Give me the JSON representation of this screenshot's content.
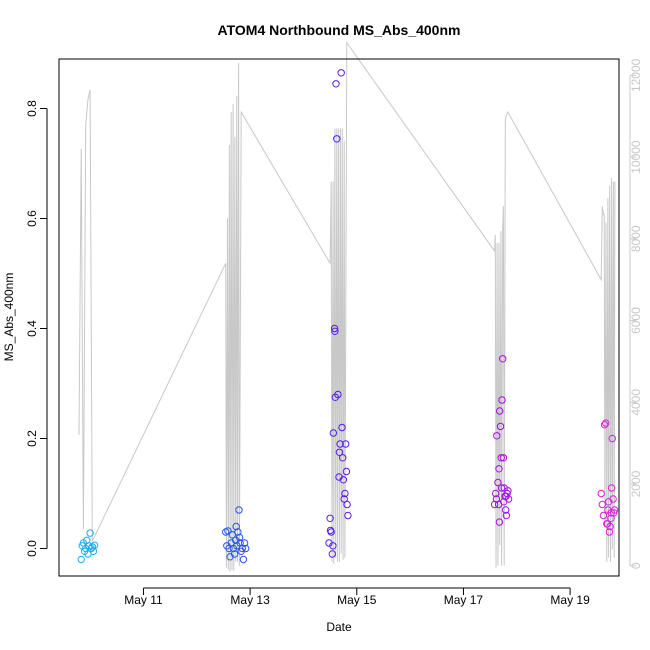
{
  "chart_data": {
    "type": "scatter",
    "title": "ATOM4 Northbound MS_Abs_400nm",
    "xlabel": "Date",
    "ylabel": "MS_Abs_400nm",
    "xlim": [
      "2024-05-09T10:00",
      "2024-05-19T22:00"
    ],
    "ylim": [
      -0.05,
      0.89
    ],
    "y_ticks": [
      0.0,
      0.2,
      0.4,
      0.6,
      0.8
    ],
    "y_tick_labels": [
      "0.0",
      "0.2",
      "0.4",
      "0.6",
      "0.8"
    ],
    "x_ticks": [
      "2024-05-11",
      "2024-05-13",
      "2024-05-15",
      "2024-05-17",
      "2024-05-19"
    ],
    "x_tick_labels": [
      "May 11",
      "May 13",
      "May 15",
      "May 17",
      "May 19"
    ],
    "y2_ticks": [
      0,
      2000,
      4000,
      6000,
      8000,
      10000,
      12000
    ],
    "y2_tick_labels": [
      "0",
      "2000",
      "4000",
      "6000",
      "8000",
      "10000",
      "12000"
    ],
    "y2lim": [
      -250,
      12400
    ],
    "grid": false,
    "series": [
      {
        "marker": "open-circle",
        "color_gradient": [
          "#1eb0f0",
          "#2060e8",
          "#5a18e8",
          "#9a10e0",
          "#e020d8"
        ],
        "points": [
          [
            "2024-05-09T20:00",
            -0.02
          ],
          [
            "2024-05-09T20:30",
            0.005
          ],
          [
            "2024-05-09T21:00",
            0.01
          ],
          [
            "2024-05-09T21:30",
            -0.005
          ],
          [
            "2024-05-09T22:00",
            0.0
          ],
          [
            "2024-05-09T22:30",
            0.015
          ],
          [
            "2024-05-09T23:00",
            -0.01
          ],
          [
            "2024-05-09T23:30",
            0.005
          ],
          [
            "2024-05-10T00:00",
            0.028
          ],
          [
            "2024-05-10T00:30",
            0.0
          ],
          [
            "2024-05-10T01:00",
            0.003
          ],
          [
            "2024-05-10T01:30",
            -0.005
          ],
          [
            "2024-05-10T02:00",
            0.006
          ],
          [
            "2024-05-12T13:00",
            0.03
          ],
          [
            "2024-05-12T13:30",
            0.005
          ],
          [
            "2024-05-12T14:00",
            0.032
          ],
          [
            "2024-05-12T14:30",
            0.0
          ],
          [
            "2024-05-12T15:00",
            -0.015
          ],
          [
            "2024-05-12T15:30",
            0.01
          ],
          [
            "2024-05-12T16:00",
            0.025
          ],
          [
            "2024-05-12T16:30",
            0.0
          ],
          [
            "2024-05-12T17:00",
            -0.01
          ],
          [
            "2024-05-12T17:30",
            0.015
          ],
          [
            "2024-05-12T18:00",
            0.005
          ],
          [
            "2024-05-12T18:30",
            0.03
          ],
          [
            "2024-05-12T19:00",
            0.07
          ],
          [
            "2024-05-12T19:30",
            0.01
          ],
          [
            "2024-05-12T20:00",
            -0.005
          ],
          [
            "2024-05-12T20:30",
            0.0
          ],
          [
            "2024-05-12T21:00",
            -0.02
          ],
          [
            "2024-05-12T21:30",
            0.01
          ],
          [
            "2024-05-12T22:00",
            0.0
          ],
          [
            "2024-05-12T17:45",
            0.04
          ],
          [
            "2024-05-12T19:15",
            0.02
          ],
          [
            "2024-05-14T11:30",
            0.01
          ],
          [
            "2024-05-14T12:00",
            0.055
          ],
          [
            "2024-05-14T12:30",
            0.03
          ],
          [
            "2024-05-14T13:00",
            -0.01
          ],
          [
            "2024-05-14T13:15",
            0.005
          ],
          [
            "2024-05-14T13:30",
            0.21
          ],
          [
            "2024-05-14T14:00",
            0.4
          ],
          [
            "2024-05-14T14:20",
            0.275
          ],
          [
            "2024-05-14T14:40",
            0.845
          ],
          [
            "2024-05-14T15:00",
            0.745
          ],
          [
            "2024-05-14T15:30",
            0.28
          ],
          [
            "2024-05-14T16:00",
            0.13
          ],
          [
            "2024-05-14T16:30",
            0.19
          ],
          [
            "2024-05-14T17:00",
            0.865
          ],
          [
            "2024-05-14T17:20",
            0.22
          ],
          [
            "2024-05-14T17:40",
            0.165
          ],
          [
            "2024-05-14T18:00",
            0.125
          ],
          [
            "2024-05-14T18:20",
            0.09
          ],
          [
            "2024-05-14T18:40",
            0.1
          ],
          [
            "2024-05-14T19:00",
            0.19
          ],
          [
            "2024-05-14T19:20",
            0.14
          ],
          [
            "2024-05-14T19:40",
            0.08
          ],
          [
            "2024-05-14T20:00",
            0.06
          ],
          [
            "2024-05-14T14:10",
            0.395
          ],
          [
            "2024-05-14T16:10",
            0.175
          ],
          [
            "2024-05-14T12:10",
            0.033
          ],
          [
            "2024-05-17T14:00",
            0.08
          ],
          [
            "2024-05-17T14:30",
            0.1
          ],
          [
            "2024-05-17T15:00",
            0.205
          ],
          [
            "2024-05-17T15:30",
            0.12
          ],
          [
            "2024-05-17T16:00",
            0.145
          ],
          [
            "2024-05-17T16:20",
            0.25
          ],
          [
            "2024-05-17T16:40",
            0.222
          ],
          [
            "2024-05-17T17:00",
            0.165
          ],
          [
            "2024-05-17T17:20",
            0.27
          ],
          [
            "2024-05-17T17:40",
            0.345
          ],
          [
            "2024-05-17T18:00",
            0.165
          ],
          [
            "2024-05-17T18:20",
            0.11
          ],
          [
            "2024-05-17T18:40",
            0.095
          ],
          [
            "2024-05-17T19:00",
            0.07
          ],
          [
            "2024-05-17T19:20",
            0.06
          ],
          [
            "2024-05-17T19:40",
            0.1
          ],
          [
            "2024-05-17T20:00",
            0.105
          ],
          [
            "2024-05-17T20:20",
            0.09
          ],
          [
            "2024-05-17T14:50",
            0.09
          ],
          [
            "2024-05-17T15:50",
            0.08
          ],
          [
            "2024-05-17T16:10",
            0.048
          ],
          [
            "2024-05-17T17:10",
            0.11
          ],
          [
            "2024-05-17T18:10",
            0.085
          ],
          [
            "2024-05-17T19:10",
            0.095
          ],
          [
            "2024-05-19T14:00",
            0.1
          ],
          [
            "2024-05-19T14:30",
            0.08
          ],
          [
            "2024-05-19T15:00",
            0.06
          ],
          [
            "2024-05-19T15:30",
            0.225
          ],
          [
            "2024-05-19T16:00",
            0.228
          ],
          [
            "2024-05-19T16:30",
            0.045
          ],
          [
            "2024-05-19T17:00",
            0.07
          ],
          [
            "2024-05-19T17:20",
            0.085
          ],
          [
            "2024-05-19T17:40",
            0.03
          ],
          [
            "2024-05-19T18:00",
            0.04
          ],
          [
            "2024-05-19T18:20",
            0.055
          ],
          [
            "2024-05-19T18:40",
            0.11
          ],
          [
            "2024-05-19T19:00",
            0.2
          ],
          [
            "2024-05-19T19:20",
            0.09
          ],
          [
            "2024-05-19T19:40",
            0.065
          ],
          [
            "2024-05-19T20:00",
            0.07
          ],
          [
            "2024-05-19T16:50",
            0.045
          ],
          [
            "2024-05-19T18:30",
            0.065
          ]
        ]
      },
      {
        "axis": "right",
        "color": "#c8c8c8",
        "marker": "line",
        "points": [
          [
            "2024-05-09T19:00",
            3200
          ],
          [
            "2024-05-09T20:00",
            10200
          ],
          [
            "2024-05-09T21:00",
            900
          ],
          [
            "2024-05-09T22:00",
            10800
          ],
          [
            "2024-05-09T23:00",
            11400
          ],
          [
            "2024-05-10T00:00",
            11650
          ],
          [
            "2024-05-10T01:00",
            600
          ],
          [
            "2024-05-12T13:00",
            7400
          ],
          [
            "2024-05-12T13:20",
            -50
          ],
          [
            "2024-05-12T13:50",
            8500
          ],
          [
            "2024-05-12T14:10",
            -100
          ],
          [
            "2024-05-12T14:40",
            10300
          ],
          [
            "2024-05-12T15:00",
            -150
          ],
          [
            "2024-05-12T15:30",
            11100
          ],
          [
            "2024-05-12T15:50",
            -100
          ],
          [
            "2024-05-12T16:20",
            11300
          ],
          [
            "2024-05-12T16:40",
            -120
          ],
          [
            "2024-05-12T17:10",
            10500
          ],
          [
            "2024-05-12T17:30",
            100
          ],
          [
            "2024-05-12T18:00",
            11500
          ],
          [
            "2024-05-12T18:20",
            100
          ],
          [
            "2024-05-12T18:50",
            12300
          ],
          [
            "2024-05-12T19:10",
            0
          ],
          [
            "2024-05-12T20:00",
            11100
          ],
          [
            "2024-05-14T12:00",
            7400
          ],
          [
            "2024-05-14T12:30",
            9400
          ],
          [
            "2024-05-14T12:50",
            100
          ],
          [
            "2024-05-14T13:20",
            9400
          ],
          [
            "2024-05-14T13:40",
            50
          ],
          [
            "2024-05-14T14:10",
            10700
          ],
          [
            "2024-05-14T14:30",
            200
          ],
          [
            "2024-05-14T15:00",
            10700
          ],
          [
            "2024-05-14T15:20",
            100
          ],
          [
            "2024-05-14T15:50",
            10700
          ],
          [
            "2024-05-14T16:10",
            100
          ],
          [
            "2024-05-14T16:40",
            10700
          ],
          [
            "2024-05-14T17:00",
            300
          ],
          [
            "2024-05-14T17:30",
            10700
          ],
          [
            "2024-05-14T17:50",
            150
          ],
          [
            "2024-05-14T18:20",
            10400
          ],
          [
            "2024-05-14T18:40",
            200
          ],
          [
            "2024-05-14T19:30",
            12800
          ],
          [
            "2024-05-17T14:00",
            7700
          ],
          [
            "2024-05-17T14:20",
            8100
          ],
          [
            "2024-05-17T14:40",
            -50
          ],
          [
            "2024-05-17T15:10",
            7900
          ],
          [
            "2024-05-17T15:30",
            0
          ],
          [
            "2024-05-17T16:00",
            7900
          ],
          [
            "2024-05-17T16:20",
            500
          ],
          [
            "2024-05-17T16:50",
            8200
          ],
          [
            "2024-05-17T17:10",
            0
          ],
          [
            "2024-05-17T17:40",
            8300
          ],
          [
            "2024-05-17T18:00",
            8800
          ],
          [
            "2024-05-17T18:20",
            0
          ],
          [
            "2024-05-17T18:50",
            10900
          ],
          [
            "2024-05-17T19:10",
            11000
          ],
          [
            "2024-05-17T20:00",
            11100
          ],
          [
            "2024-05-19T14:00",
            7000
          ],
          [
            "2024-05-19T14:30",
            8800
          ],
          [
            "2024-05-19T15:00",
            8600
          ],
          [
            "2024-05-19T15:20",
            8600
          ],
          [
            "2024-05-19T15:40",
            1000
          ],
          [
            "2024-05-19T16:10",
            8400
          ],
          [
            "2024-05-19T16:30",
            100
          ],
          [
            "2024-05-19T17:00",
            9000
          ],
          [
            "2024-05-19T17:20",
            200
          ],
          [
            "2024-05-19T17:50",
            9300
          ],
          [
            "2024-05-19T18:10",
            100
          ],
          [
            "2024-05-19T18:40",
            9500
          ],
          [
            "2024-05-19T19:00",
            400
          ],
          [
            "2024-05-19T19:30",
            9400
          ],
          [
            "2024-05-19T19:50",
            200
          ],
          [
            "2024-05-19T20:10",
            9400
          ]
        ]
      }
    ]
  }
}
